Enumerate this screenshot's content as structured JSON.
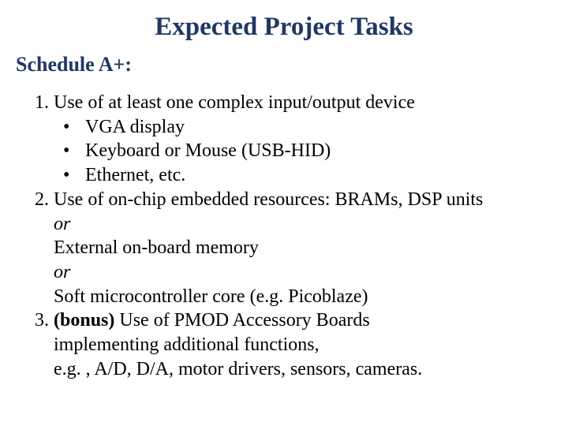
{
  "colors": {
    "title": "#1f3864",
    "subtitle": "#1f3864",
    "body": "#000000",
    "background": "#ffffff"
  },
  "typography": {
    "family": "Times New Roman",
    "title_size_pt": 25,
    "subtitle_size_pt": 20,
    "body_size_pt": 18
  },
  "title": "Expected Project Tasks",
  "subtitle": "Schedule A+:",
  "items": {
    "n1": "1.",
    "t1": "Use of at least one complex input/output device",
    "b1a": "VGA display",
    "b1b": "Keyboard or Mouse (USB-HID)",
    "b1c": "Ethernet, etc.",
    "n2": "2.",
    "t2": "Use of on-chip embedded resources: BRAMs, DSP units",
    "or": "or",
    "t2b": "External on-board memory",
    "t2c": "Soft microcontroller core (e.g. Picoblaze)",
    "n3": "3.",
    "bonus": "(bonus)",
    "t3a": " Use of PMOD Accessory Boards",
    "t3b": "implementing additional functions,",
    "t3c": "e.g. , A/D, D/A, motor drivers, sensors, cameras."
  },
  "bullet": "•"
}
